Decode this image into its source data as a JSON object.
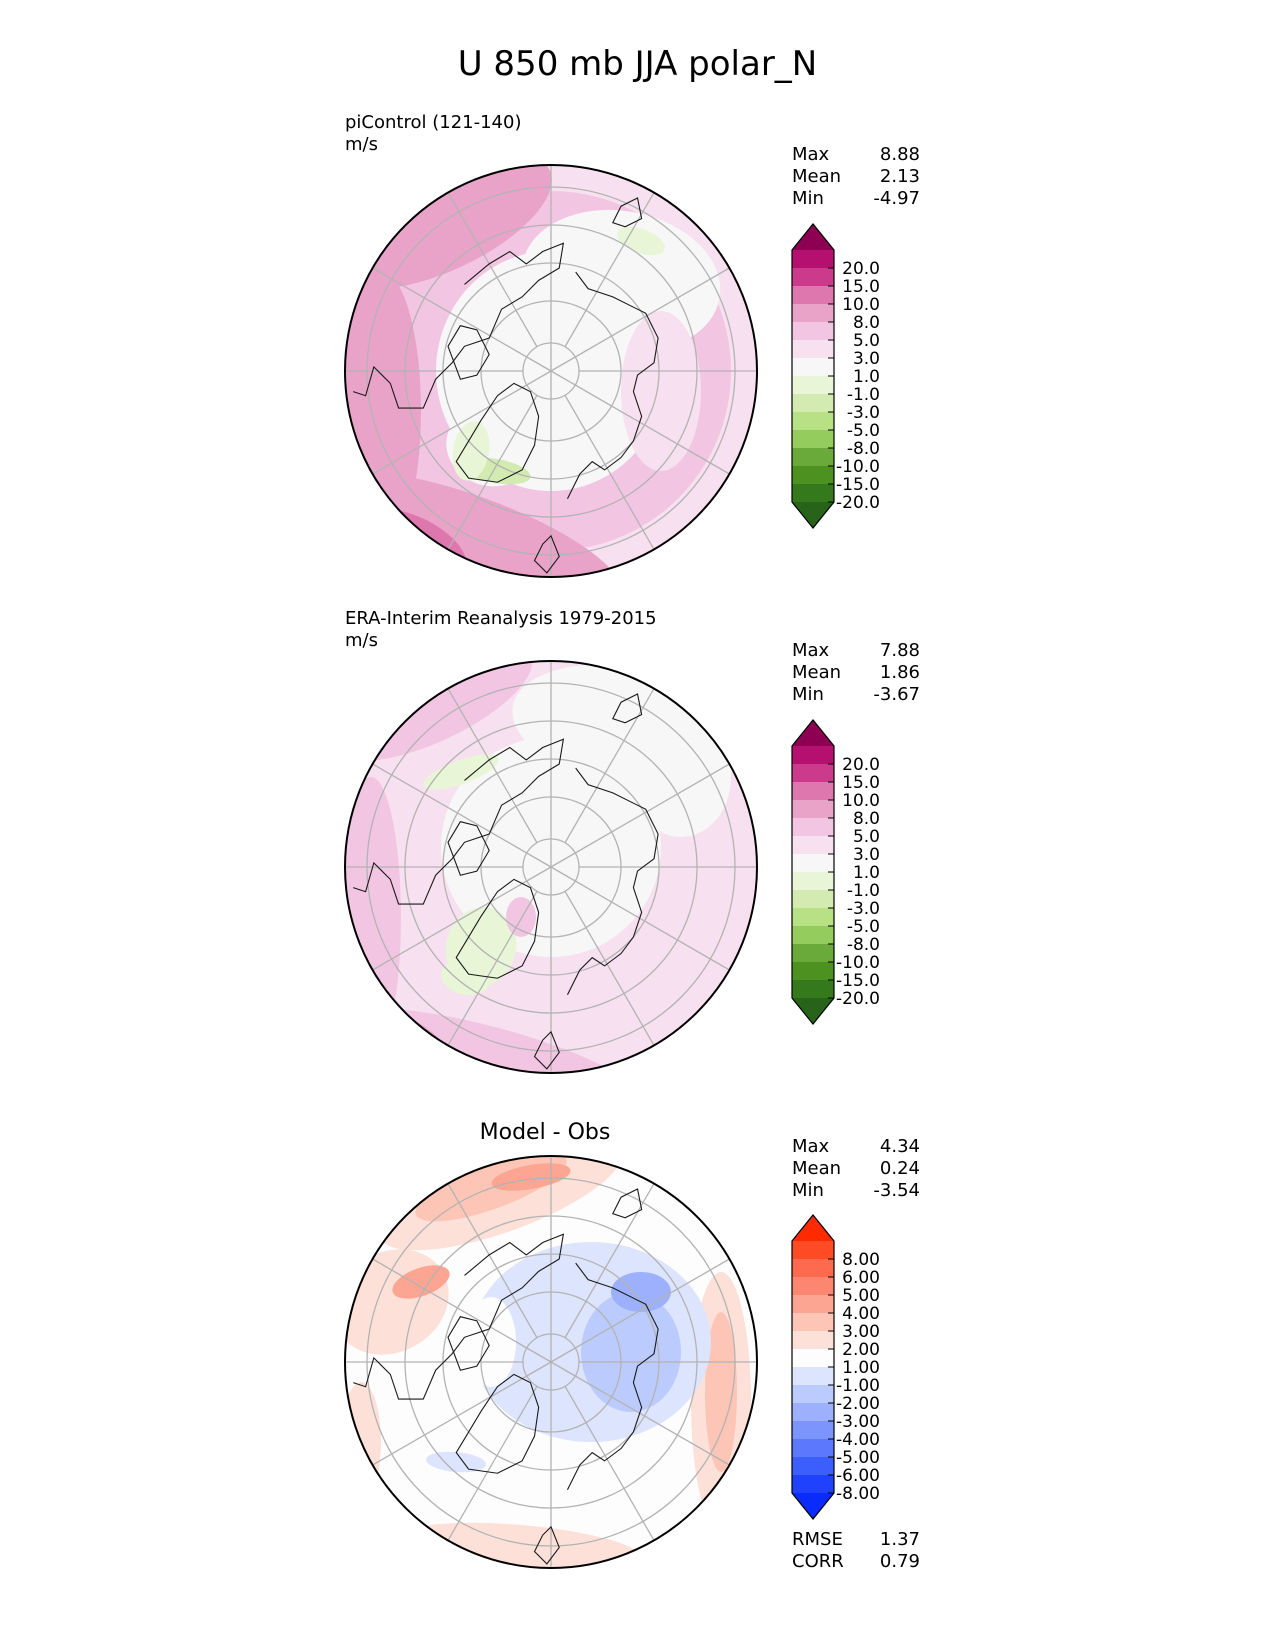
{
  "title": "U 850 mb JJA polar_N",
  "panels": [
    {
      "id": "model",
      "title_line1": "piControl (121-140)",
      "title_line2": "m/s",
      "center_title": "",
      "stats": [
        {
          "label": "Max",
          "value": "8.88"
        },
        {
          "label": "Mean",
          "value": "2.13"
        },
        {
          "label": "Min",
          "value": "-4.97"
        }
      ],
      "colorbar": {
        "levels": [
          "20.0",
          "15.0",
          "10.0",
          "8.0",
          "5.0",
          "3.0",
          "1.0",
          "-1.0",
          "-3.0",
          "-5.0",
          "-8.0",
          "-10.0",
          "-15.0",
          "-20.0"
        ],
        "colors": [
          "#8e0152",
          "#b5106f",
          "#cc3b8b",
          "#de77ae",
          "#e9a3c9",
          "#f2c6e2",
          "#f7e0ef",
          "#f7f7f7",
          "#e9f5d7",
          "#d3ebb0",
          "#b8e186",
          "#94cc5d",
          "#6aaa3a",
          "#4d9221",
          "#347a1c",
          "#276419"
        ]
      }
    },
    {
      "id": "obs",
      "title_line1": "ERA-Interim Reanalysis 1979-2015",
      "title_line2": "m/s",
      "center_title": "",
      "stats": [
        {
          "label": "Max",
          "value": "7.88"
        },
        {
          "label": "Mean",
          "value": "1.86"
        },
        {
          "label": "Min",
          "value": "-3.67"
        }
      ],
      "colorbar": {
        "levels": [
          "20.0",
          "15.0",
          "10.0",
          "8.0",
          "5.0",
          "3.0",
          "1.0",
          "-1.0",
          "-3.0",
          "-5.0",
          "-8.0",
          "-10.0",
          "-15.0",
          "-20.0"
        ],
        "colors": [
          "#8e0152",
          "#b5106f",
          "#cc3b8b",
          "#de77ae",
          "#e9a3c9",
          "#f2c6e2",
          "#f7e0ef",
          "#f7f7f7",
          "#e9f5d7",
          "#d3ebb0",
          "#b8e186",
          "#94cc5d",
          "#6aaa3a",
          "#4d9221",
          "#347a1c",
          "#276419"
        ]
      }
    },
    {
      "id": "diff",
      "title_line1": "",
      "title_line2": "",
      "center_title": "Model - Obs",
      "stats": [
        {
          "label": "Max",
          "value": "4.34"
        },
        {
          "label": "Mean",
          "value": "0.24"
        },
        {
          "label": "Min",
          "value": "-3.54"
        }
      ],
      "extra_stats": [
        {
          "label": "RMSE",
          "value": "1.37"
        },
        {
          "label": "CORR",
          "value": "0.79"
        }
      ],
      "colorbar": {
        "levels": [
          "8.00",
          "6.00",
          "5.00",
          "4.00",
          "3.00",
          "2.00",
          "1.00",
          "-1.00",
          "-2.00",
          "-3.00",
          "-4.00",
          "-5.00",
          "-6.00",
          "-8.00"
        ],
        "colors": [
          "#ff2a00",
          "#ff4a26",
          "#fe6a4d",
          "#fd8670",
          "#fca592",
          "#fdc5b6",
          "#fde0d8",
          "#fdfdfd",
          "#dde4fd",
          "#bccbfd",
          "#9cb0fd",
          "#7c95fd",
          "#5c79fd",
          "#3c5efd",
          "#2042fd",
          "#0a2bfd"
        ]
      }
    }
  ],
  "chart_data": [
    {
      "type": "heatmap",
      "projection": "north polar stereographic",
      "title": "piControl (121-140)",
      "units": "m/s",
      "variable": "U 850 mb JJA",
      "stats": {
        "max": 8.88,
        "mean": 2.13,
        "min": -4.97
      },
      "colorbar_levels": [
        -20,
        -15,
        -10,
        -8,
        -5,
        -3,
        -1,
        1,
        3,
        5,
        8,
        10,
        15,
        20
      ],
      "colorbar_extend": "both",
      "grid": true,
      "qualitative_field": "positive westerlies (1-10 m/s) around the rim, strongest over the Pacific and Atlantic; near zero over the central Arctic; weak easterlies over Greenland and parts of Siberia"
    },
    {
      "type": "heatmap",
      "projection": "north polar stereographic",
      "title": "ERA-Interim Reanalysis 1979-2015",
      "units": "m/s",
      "variable": "U 850 mb JJA",
      "stats": {
        "max": 7.88,
        "mean": 1.86,
        "min": -3.67
      },
      "colorbar_levels": [
        -20,
        -15,
        -10,
        -8,
        -5,
        -3,
        -1,
        1,
        3,
        5,
        8,
        10,
        15,
        20
      ],
      "colorbar_extend": "both",
      "grid": true,
      "qualitative_field": "positive westerlies around the rim (1-8 m/s), near zero over much of the Arctic; small weak easterlies near Greenland"
    },
    {
      "type": "heatmap",
      "projection": "north polar stereographic",
      "title": "Model - Obs",
      "units": "m/s",
      "stats": {
        "max": 4.34,
        "mean": 0.24,
        "min": -3.54,
        "rmse": 1.37,
        "corr": 0.79
      },
      "colorbar_levels": [
        -8,
        -6,
        -5,
        -4,
        -3,
        -2,
        -1,
        1,
        2,
        3,
        4,
        5,
        6,
        8
      ],
      "colorbar_extend": "both",
      "grid": true,
      "qualitative_field": "positive bias (1-4) over the North Pacific and along the outer rim; negative bias (-1 to -3) over the Eurasian Arctic and Barents-Kara region"
    }
  ]
}
